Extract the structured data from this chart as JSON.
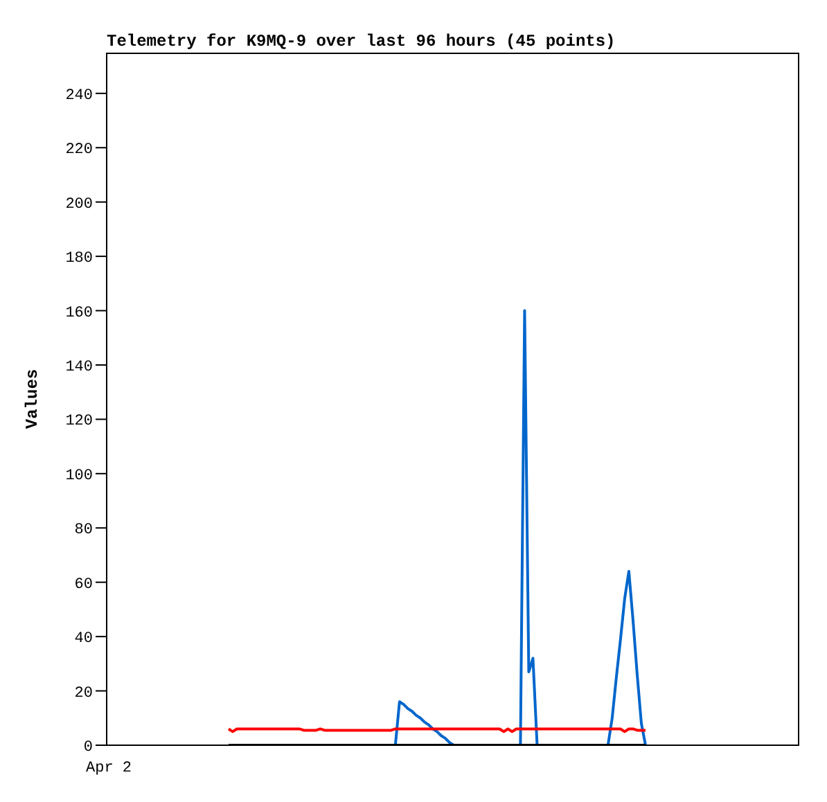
{
  "chart_data": {
    "type": "line",
    "title": "Telemetry for K9MQ-9 over last 96 hours (45 points)",
    "ylabel": "Values",
    "annotations": [
      "Apr 2"
    ],
    "tick_labels": "y",
    "categories": [
      null,
      null,
      null,
      null,
      null,
      null,
      null,
      null,
      null,
      null,
      null,
      null,
      null,
      null,
      null,
      null,
      null,
      null,
      null,
      null,
      null,
      null,
      null,
      null,
      null,
      null,
      null,
      null,
      null,
      null,
      null,
      null,
      null,
      null,
      null,
      null,
      null,
      null,
      null,
      null,
      null,
      null,
      null,
      null,
      null,
      null,
      null,
      null,
      null,
      null,
      null,
      null,
      null,
      null,
      null,
      null,
      null,
      null,
      null,
      null,
      null,
      null,
      null,
      null,
      null,
      null,
      null,
      null,
      null,
      null,
      null,
      null,
      null,
      null,
      null,
      null,
      null,
      null,
      null,
      null,
      null,
      null,
      null,
      null,
      null,
      null,
      null,
      null,
      null,
      null,
      null,
      null,
      null,
      null,
      null,
      null,
      null,
      null,
      null,
      null,
      null
    ],
    "ylim": [
      0,
      255
    ],
    "yticks": [
      0,
      20,
      40,
      60,
      80,
      100,
      120,
      140,
      160,
      180,
      200,
      220,
      240
    ],
    "marker": "none",
    "series": [
      {
        "color": "#0066cc",
        "values": [
          null,
          null,
          null,
          null,
          null,
          null,
          null,
          null,
          null,
          null,
          null,
          null,
          null,
          null,
          null,
          null,
          null,
          null,
          null,
          null,
          null,
          null,
          null,
          null,
          null,
          null,
          null,
          null,
          null,
          null,
          null,
          null,
          null,
          null,
          null,
          null,
          null,
          null,
          null,
          null,
          0,
          16,
          15,
          13.5,
          12.5,
          11,
          10,
          8.5,
          7.5,
          6,
          5,
          3.5,
          2.5,
          1,
          0,
          0,
          0,
          0,
          0,
          0,
          0,
          0,
          0,
          0,
          0,
          0,
          0,
          0,
          0,
          0,
          0,
          160,
          27,
          32,
          0,
          0,
          0,
          0,
          0,
          0,
          0,
          0,
          0,
          0,
          0,
          0,
          0,
          0,
          0,
          0,
          0,
          0,
          10,
          25,
          39,
          54,
          64,
          46,
          26,
          8,
          0
        ]
      },
      {
        "color": "#ff0000",
        "values": [
          6,
          5,
          6,
          6,
          6,
          6,
          6,
          6,
          6,
          6,
          6,
          6,
          6,
          6,
          6,
          6,
          6,
          6,
          5.5,
          5.5,
          5.5,
          5.5,
          6,
          5.5,
          5.5,
          5.5,
          5.5,
          5.5,
          5.5,
          5.5,
          5.5,
          5.5,
          5.5,
          5.5,
          5.5,
          5.5,
          5.5,
          5.5,
          5.5,
          5.5,
          6,
          6,
          6,
          6,
          6,
          6,
          6,
          6,
          6,
          6,
          6,
          6,
          6,
          6,
          6,
          6,
          6,
          6,
          6,
          6,
          6,
          6,
          6,
          6,
          6,
          6,
          5,
          6,
          5,
          6,
          6,
          6,
          6,
          6,
          6,
          6,
          6,
          6,
          6,
          6,
          6,
          6,
          6,
          6,
          6,
          6,
          6,
          6,
          6,
          6,
          6,
          6,
          6,
          6,
          6,
          5,
          6,
          6,
          5.5,
          5.5,
          5.5
        ]
      },
      {
        "color": "#000000",
        "values": [
          0,
          0,
          0,
          0,
          0,
          0,
          0,
          0,
          0,
          0,
          0,
          0,
          0,
          0,
          0,
          0,
          0,
          0,
          0,
          0,
          0,
          0,
          0,
          0,
          0,
          0,
          0,
          0,
          0,
          0,
          0,
          0,
          0,
          0,
          0,
          0,
          0,
          0,
          0,
          0,
          0,
          0,
          0,
          0,
          0,
          0,
          0,
          0,
          0,
          0,
          0,
          0,
          0,
          0,
          0,
          0,
          0,
          0,
          0,
          0,
          0,
          0,
          0,
          0,
          0,
          0,
          0,
          0,
          0,
          0,
          0,
          0,
          0,
          0,
          0,
          0,
          0,
          0,
          0,
          0,
          0,
          0,
          0,
          0,
          0,
          0,
          0,
          0,
          0,
          0,
          0,
          0,
          0,
          0,
          0,
          0,
          0,
          0,
          0,
          0,
          0
        ]
      }
    ]
  }
}
